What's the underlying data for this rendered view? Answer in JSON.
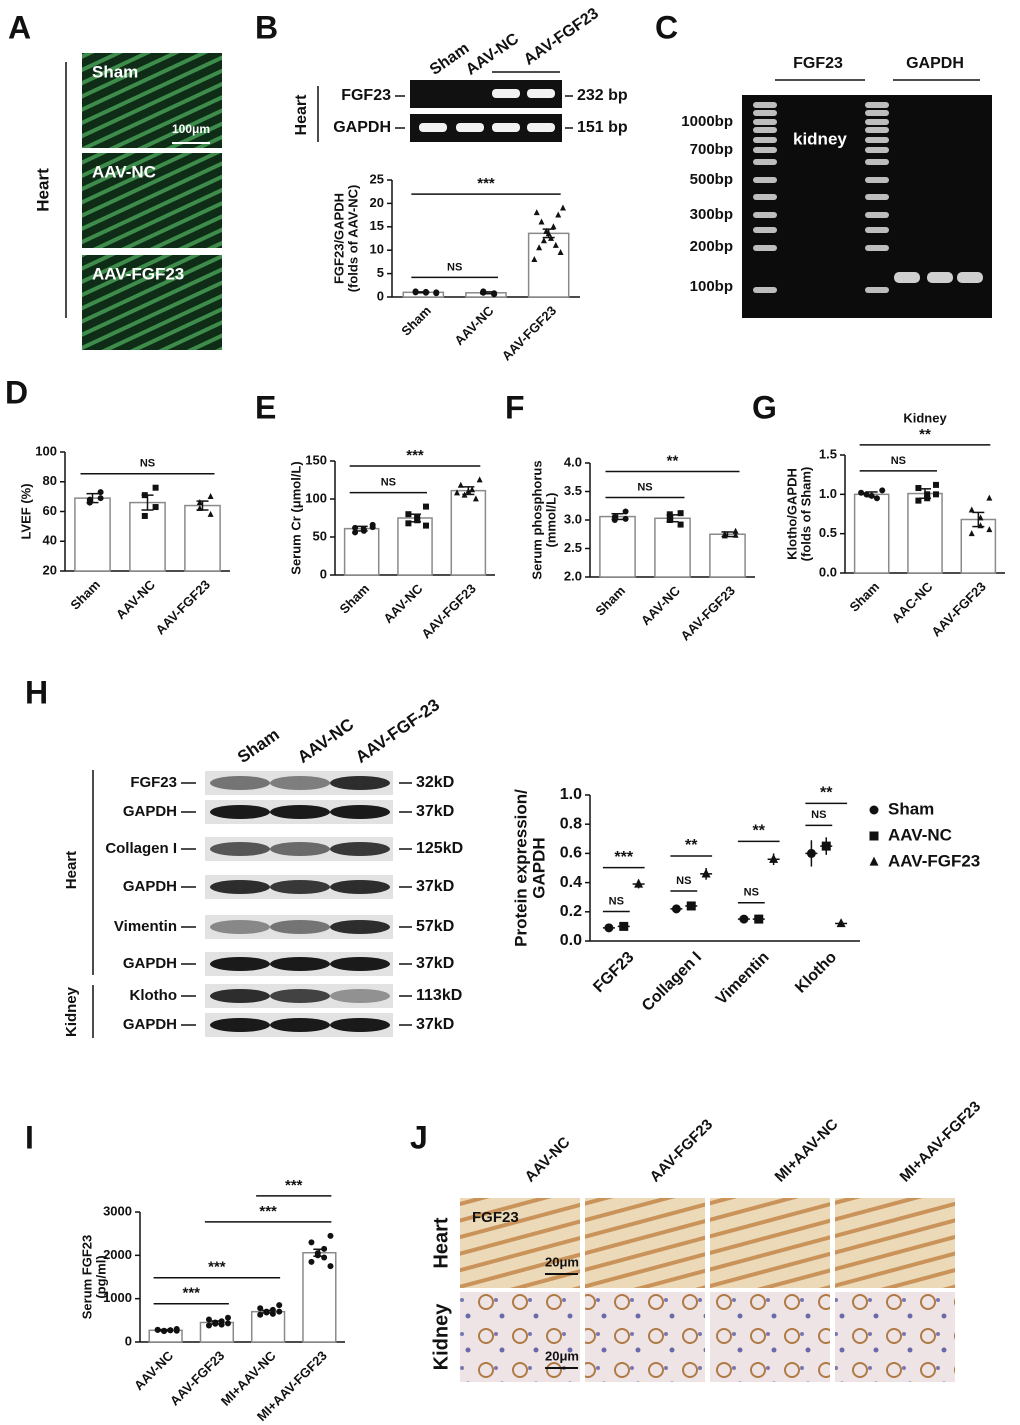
{
  "panel_letters": [
    "A",
    "B",
    "C",
    "D",
    "E",
    "F",
    "G",
    "H",
    "I",
    "J"
  ],
  "panel_a": {
    "side_label": "Heart",
    "images": [
      "Sham",
      "AAV-NC",
      "AAV-FGF23"
    ],
    "scale_bar": "100μm"
  },
  "panel_b_gel": {
    "side_label": "Heart",
    "lanes": [
      "Sham",
      "AAV-NC",
      "AAV-FGF23"
    ],
    "rows": [
      {
        "label": "FGF23",
        "size": "232 bp"
      },
      {
        "label": "GAPDH",
        "size": "151 bp"
      }
    ]
  },
  "panel_c_gel": {
    "groups": [
      "FGF23",
      "GAPDH"
    ],
    "ladder": [
      "1000bp",
      "700bp",
      "500bp",
      "300bp",
      "200bp",
      "100bp"
    ],
    "label": "kidney"
  },
  "panel_h_blot": {
    "lanes": [
      "Sham",
      "AAV-NC",
      "AAV-FGF-23"
    ],
    "groups": [
      "Heart",
      "Kidney"
    ],
    "rows": [
      {
        "label": "FGF23",
        "size": "32kD"
      },
      {
        "label": "GAPDH",
        "size": "37kD"
      },
      {
        "label": "Collagen I",
        "size": "125kD"
      },
      {
        "label": "GAPDH",
        "size": "37kD"
      },
      {
        "label": "Vimentin",
        "size": "57kD"
      },
      {
        "label": "GAPDH",
        "size": "37kD"
      },
      {
        "label": "Klotho",
        "size": "113kD"
      },
      {
        "label": "GAPDH",
        "size": "37kD"
      }
    ]
  },
  "panel_j": {
    "columns": [
      "AAV-NC",
      "AAV-FGF23",
      "MI+AAV-NC",
      "MI+AAV-FGF23"
    ],
    "rows": [
      "Heart",
      "Kidney"
    ],
    "stain_label": "FGF23",
    "scale_bar": "20μm"
  },
  "chart_data": [
    {
      "type": "bar",
      "y_label": [
        "FGF23/GAPDH",
        "(folds of AAV-NC)"
      ],
      "categories": [
        "Sham",
        "AAV-NC",
        "AAV-FGF23"
      ],
      "values": [
        1.0,
        0.9,
        13.6
      ],
      "errors": [
        0.1,
        0.2,
        0.9
      ],
      "points": [
        [
          0.8,
          1.0,
          1.1,
          0.9,
          1.2,
          1.0
        ],
        [
          0.6,
          0.9,
          1.2,
          0.8
        ],
        [
          19,
          18,
          17.5,
          16,
          15,
          14,
          13.5,
          12.5,
          12,
          11,
          10.5,
          9.5,
          8
        ]
      ],
      "markers": [
        "circle",
        "circle",
        "triangle"
      ],
      "ylim": [
        0,
        25
      ],
      "yticks": [
        0,
        5,
        10,
        15,
        20,
        25
      ],
      "significance": [
        {
          "label": "NS",
          "groups": [
            "Sham",
            "AAV-NC"
          ]
        },
        {
          "label": "***",
          "groups": [
            "Sham",
            "AAV-FGF23"
          ]
        }
      ]
    },
    {
      "type": "bar",
      "y_label": [
        "LVEF (%)"
      ],
      "categories": [
        "Sham",
        "AAV-NC",
        "AAV-FGF23"
      ],
      "values": [
        69,
        66,
        64
      ],
      "errors": [
        3,
        5,
        3
      ],
      "points": [
        [
          73,
          68,
          66,
          69
        ],
        [
          76,
          71,
          57,
          63
        ],
        [
          70,
          66,
          62,
          58
        ]
      ],
      "markers": [
        "circle",
        "square",
        "triangle"
      ],
      "ylim": [
        20,
        100
      ],
      "yticks": [
        20,
        40,
        60,
        80,
        100
      ],
      "significance": [
        {
          "label": "NS",
          "groups": [
            "Sham",
            "AAV-FGF23"
          ]
        }
      ]
    },
    {
      "type": "bar",
      "y_label": [
        "Serum Cr (μmol/L)"
      ],
      "categories": [
        "Sham",
        "AAV-NC",
        "AAV-FGF23"
      ],
      "values": [
        61,
        75,
        111
      ],
      "errors": [
        3,
        5,
        5
      ],
      "points": [
        [
          66,
          62,
          60,
          58,
          56,
          63
        ],
        [
          90,
          80,
          75,
          72,
          68,
          65
        ],
        [
          125,
          118,
          112,
          110,
          105,
          100,
          108
        ]
      ],
      "markers": [
        "circle",
        "square",
        "triangle"
      ],
      "ylim": [
        0,
        150
      ],
      "yticks": [
        0,
        50,
        100,
        150
      ],
      "significance": [
        {
          "label": "NS",
          "groups": [
            "Sham",
            "AAV-NC"
          ]
        },
        {
          "label": "***",
          "groups": [
            "Sham",
            "AAV-FGF23"
          ]
        }
      ]
    },
    {
      "type": "bar",
      "y_label": [
        "Serum phosphorus",
        "(mmol/L)"
      ],
      "categories": [
        "Sham",
        "AAV-NC",
        "AAV-FGF23"
      ],
      "values": [
        3.06,
        3.03,
        2.75
      ],
      "errors": [
        0.05,
        0.06,
        0.04
      ],
      "points": [
        [
          3.15,
          3.05,
          3.0,
          3.02
        ],
        [
          3.12,
          3.1,
          3.0,
          2.92
        ],
        [
          2.8,
          2.75,
          2.72,
          2.73
        ]
      ],
      "markers": [
        "circle",
        "square",
        "triangle"
      ],
      "ylim": [
        2.0,
        4.0
      ],
      "yticks": [
        {
          "value": 2.0,
          "label": "2.0"
        },
        2.5,
        {
          "value": 3.0,
          "label": "3.0"
        },
        3.5,
        {
          "value": 4.0,
          "label": "4.0"
        }
      ],
      "significance": [
        {
          "label": "NS",
          "groups": [
            "Sham",
            "AAV-NC"
          ]
        },
        {
          "label": "**",
          "groups": [
            "Sham",
            "AAV-FGF23"
          ]
        }
      ]
    },
    {
      "type": "bar",
      "title": "Kidney",
      "y_label": [
        "Klotho/GAPDH",
        "(folds of Sham)"
      ],
      "categories": [
        "Sham",
        "AAC-NC",
        "AAV-FGF23"
      ],
      "values": [
        1.0,
        1.01,
        0.68
      ],
      "errors": [
        0.03,
        0.06,
        0.09
      ],
      "points": [
        [
          1.05,
          1.0,
          0.98,
          0.95,
          1.02
        ],
        [
          1.12,
          1.08,
          1.0,
          0.95,
          0.92,
          1.0
        ],
        [
          0.95,
          0.8,
          0.7,
          0.6,
          0.5,
          0.55
        ]
      ],
      "markers": [
        "circle",
        "square",
        "triangle"
      ],
      "ylim": [
        0,
        1.5
      ],
      "yticks": [
        {
          "value": 0,
          "label": "0.0"
        },
        0.5,
        {
          "value": 1.0,
          "label": "1.0"
        },
        1.5
      ],
      "significance": [
        {
          "label": "NS",
          "groups": [
            "Sham",
            "AAC-NC"
          ]
        },
        {
          "label": "**",
          "groups": [
            "Sham",
            "AAV-FGF23"
          ]
        }
      ]
    },
    {
      "type": "dot",
      "y_label": [
        "Protein expression/",
        "GAPDH"
      ],
      "categories": [
        "FGF23",
        "Collagen I",
        "Vimentin",
        "Klotho"
      ],
      "series": [
        {
          "name": "Sham",
          "marker": "circle",
          "values": [
            0.09,
            0.22,
            0.15,
            0.6
          ],
          "errors": [
            0.02,
            0.03,
            0.02,
            0.09
          ]
        },
        {
          "name": "AAV-NC",
          "marker": "square",
          "values": [
            0.1,
            0.24,
            0.15,
            0.65
          ],
          "errors": [
            0.02,
            0.02,
            0.03,
            0.06
          ]
        },
        {
          "name": "AAV-FGF23",
          "marker": "triangle",
          "values": [
            0.39,
            0.46,
            0.56,
            0.12
          ],
          "errors": [
            0.03,
            0.04,
            0.04,
            0.01
          ]
        }
      ],
      "ylim": [
        0,
        1.0
      ],
      "yticks": [
        {
          "value": 0,
          "label": "0.0"
        },
        0.2,
        0.4,
        0.6,
        0.8,
        {
          "value": 1.0,
          "label": "1.0"
        }
      ],
      "significance": [
        [
          "NS",
          "***"
        ],
        [
          "NS",
          "**"
        ],
        [
          "NS",
          "**"
        ],
        [
          "NS",
          "**"
        ]
      ]
    },
    {
      "type": "bar",
      "y_label": [
        "Serum FGF23",
        "(pg/ml)"
      ],
      "categories": [
        "AAV-NC",
        "AAV-FGF23",
        "MI+AAV-NC",
        "MI+AAV-FGF23"
      ],
      "values": [
        270,
        450,
        700,
        2060
      ],
      "errors": [
        15,
        35,
        30,
        80
      ],
      "points": [
        [
          300,
          280,
          270,
          260,
          250,
          270,
          280,
          260
        ],
        [
          560,
          520,
          480,
          450,
          420,
          400,
          380,
          430
        ],
        [
          850,
          780,
          740,
          700,
          680,
          650,
          630,
          700
        ],
        [
          2450,
          2300,
          2150,
          2050,
          2000,
          1950,
          1850,
          1750
        ]
      ],
      "markers": [
        "circle",
        "circle",
        "circle",
        "circle"
      ],
      "ylim": [
        0,
        3000
      ],
      "yticks": [
        0,
        1000,
        2000,
        3000
      ],
      "significance": [
        {
          "label": "***",
          "groups": [
            "AAV-NC",
            "AAV-FGF23"
          ]
        },
        {
          "label": "***",
          "groups": [
            "AAV-NC",
            "MI+AAV-NC"
          ]
        },
        {
          "label": "***",
          "groups": [
            "AAV-FGF23",
            "MI+AAV-FGF23"
          ]
        },
        {
          "label": "***",
          "groups": [
            "MI+AAV-NC",
            "MI+AAV-FGF23"
          ]
        }
      ]
    }
  ]
}
